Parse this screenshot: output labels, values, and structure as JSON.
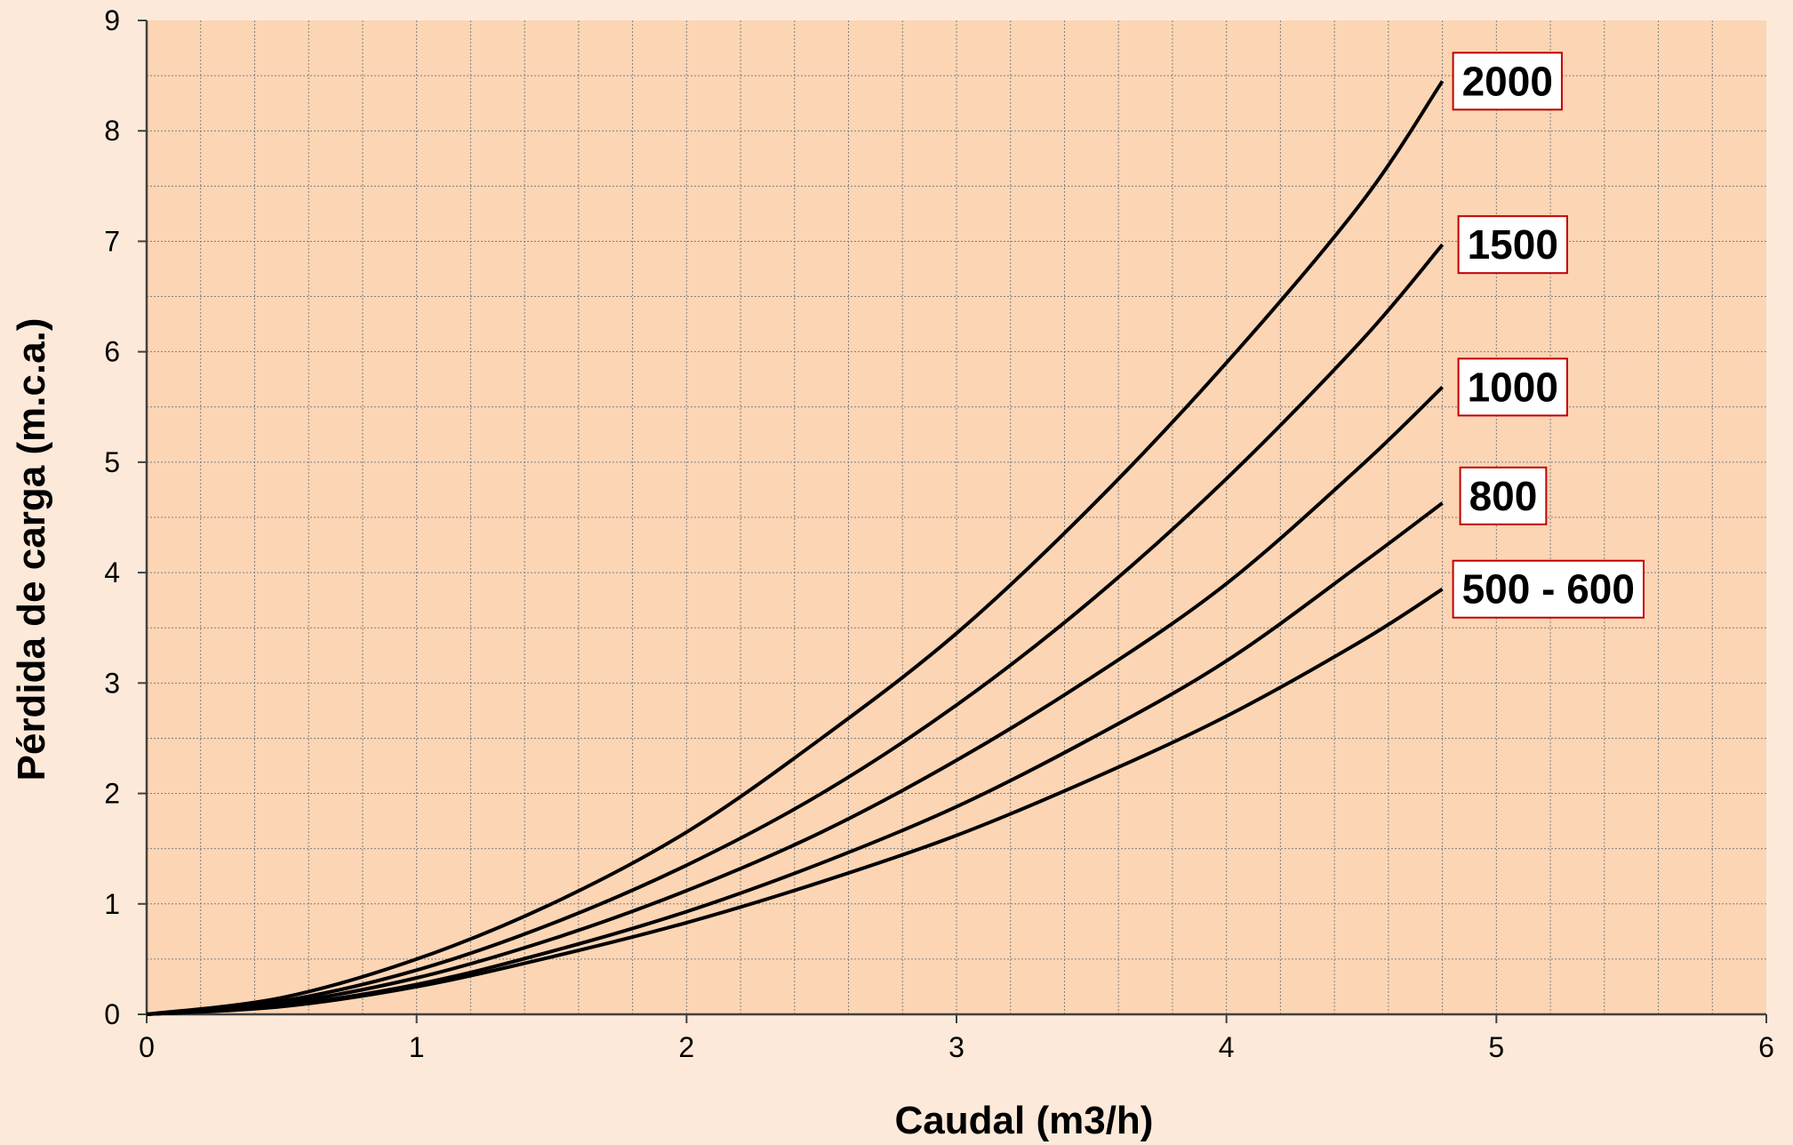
{
  "colors": {
    "page_background": "#fde9d9",
    "plot_background": "#fcd5b4",
    "grid": "#7f7f7f",
    "curve": "#000000",
    "label_border": "#c00000",
    "label_fill": "#ffffff"
  },
  "chart_data": {
    "type": "line",
    "title": "",
    "xlabel": "Caudal (m3/h)",
    "ylabel": "Pérdida de carga (m.c.a.)",
    "xlim": [
      0,
      6
    ],
    "ylim": [
      0,
      9
    ],
    "x_ticks": [
      "0",
      "1",
      "2",
      "3",
      "4",
      "5",
      "6"
    ],
    "y_ticks": [
      "0",
      "1",
      "2",
      "3",
      "4",
      "5",
      "6",
      "7",
      "8",
      "9"
    ],
    "grid": true,
    "legend": "none (series labelled at curve ends)",
    "x": [
      0,
      0.5,
      1.0,
      1.5,
      2.0,
      2.5,
      3.0,
      3.5,
      4.0,
      4.5,
      4.8
    ],
    "series": [
      {
        "name": "2000",
        "values": [
          0,
          0.15,
          0.5,
          1.0,
          1.65,
          2.5,
          3.45,
          4.6,
          5.9,
          7.35,
          8.45
        ]
      },
      {
        "name": "1500",
        "values": [
          0,
          0.12,
          0.4,
          0.82,
          1.35,
          2.0,
          2.8,
          3.75,
          4.85,
          6.1,
          6.97
        ]
      },
      {
        "name": "1000",
        "values": [
          0,
          0.1,
          0.33,
          0.68,
          1.12,
          1.65,
          2.3,
          3.05,
          3.9,
          4.97,
          5.68
        ]
      },
      {
        "name": "800",
        "values": [
          0,
          0.08,
          0.27,
          0.57,
          0.93,
          1.37,
          1.88,
          2.5,
          3.2,
          4.08,
          4.63
        ]
      },
      {
        "name": "500 - 600",
        "values": [
          0,
          0.07,
          0.25,
          0.52,
          0.83,
          1.2,
          1.62,
          2.13,
          2.7,
          3.38,
          3.85
        ]
      }
    ]
  }
}
